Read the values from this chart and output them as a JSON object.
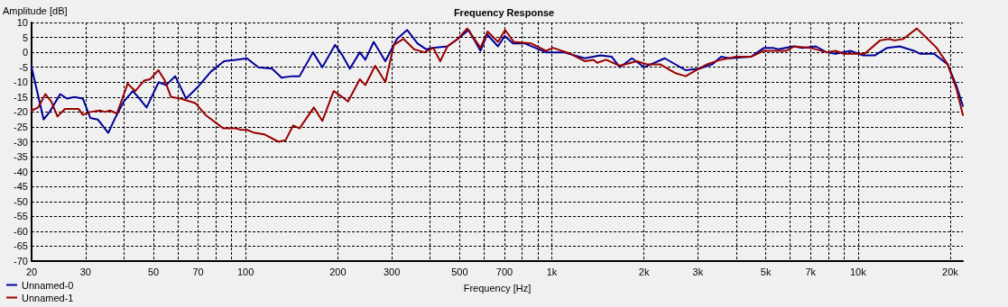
{
  "chart_data": {
    "type": "line",
    "title": "Frequency Response",
    "xlabel": "Frequency [Hz]",
    "ylabel": "Amplitude [dB]",
    "log": "x",
    "grid": true,
    "legend": "bottom left",
    "marker": "none",
    "line_style": "solid",
    "xlim": [
      20,
      22000
    ],
    "ylim": [
      -70,
      10
    ],
    "xticks": [
      20,
      30,
      {
        "value": 40,
        "label": null
      },
      50,
      {
        "value": 60,
        "label": null
      },
      70,
      {
        "value": 80,
        "label": null
      },
      {
        "value": 90,
        "label": null
      },
      100,
      200,
      300,
      {
        "value": 400,
        "label": null
      },
      500,
      {
        "value": 600,
        "label": null
      },
      700,
      {
        "value": 800,
        "label": null
      },
      {
        "value": 900,
        "label": null
      },
      {
        "value": 1000,
        "label": "1k"
      },
      {
        "value": 2000,
        "label": "2k"
      },
      {
        "value": 3000,
        "label": "3k"
      },
      {
        "value": 4000,
        "label": null
      },
      {
        "value": 5000,
        "label": "5k"
      },
      {
        "value": 6000,
        "label": null
      },
      {
        "value": 7000,
        "label": "7k"
      },
      {
        "value": 8000,
        "label": null
      },
      {
        "value": 9000,
        "label": null
      },
      {
        "value": 10000,
        "label": "10k"
      },
      {
        "value": 20000,
        "label": "20k"
      }
    ],
    "yticks": [
      -70,
      -65,
      -60,
      -55,
      -50,
      -45,
      -40,
      -35,
      -30,
      -25,
      -20,
      -15,
      -10,
      -5,
      0,
      5,
      10
    ],
    "series": [
      {
        "name": "Unnamed-0",
        "color": "#000099",
        "x": [
          20,
          21.9,
          22.9,
          24.8,
          26.1,
          27.6,
          29.4,
          31.1,
          32.9,
          35.6,
          37.3,
          40,
          42.8,
          44.6,
          47.5,
          52,
          55,
          58.9,
          63.9,
          70,
          77,
          85,
          93,
          101,
          110,
          122,
          131,
          142,
          150,
          166,
          178,
          196,
          207,
          219,
          236,
          246,
          262,
          286,
          312,
          337,
          364,
          389,
          407,
          456,
          493,
          535,
          585,
          615,
          667,
          702,
          747,
          814,
          957,
          1094,
          1281,
          1440,
          1570,
          1667,
          1826,
          2005,
          2338,
          2736,
          3030,
          3343,
          3573,
          3799,
          4473,
          4931,
          5273,
          5483,
          6160,
          6591,
          7285,
          7892,
          8440,
          9443,
          10400,
          11370,
          12440,
          13680,
          15240,
          15990,
          17710,
          19620,
          21000,
          22000
        ],
        "values": [
          -5,
          -22.5,
          -20,
          -14,
          -15.5,
          -15,
          -15.5,
          -22,
          -22.5,
          -27,
          -22.5,
          -16.5,
          -13,
          -15,
          -18.5,
          -10,
          -11,
          -8,
          -15.5,
          -11.5,
          -6.5,
          -3,
          -2.5,
          -2,
          -5,
          -5.5,
          -8.5,
          -8,
          -8,
          0,
          -5,
          2.5,
          -1,
          -5.5,
          0,
          -2.5,
          3.5,
          -3,
          4.5,
          7.5,
          3,
          1,
          1.5,
          2,
          4.5,
          7.5,
          0.5,
          6,
          2,
          5.5,
          3,
          3,
          0,
          0,
          -2,
          -1,
          -1.5,
          -5,
          -2,
          -5,
          -2,
          -6,
          -5.5,
          -4,
          -1.5,
          -2,
          -1.5,
          1.5,
          1.5,
          1,
          2,
          1.5,
          2,
          0,
          -0.5,
          0.5,
          -1,
          -1,
          1.5,
          2,
          0.5,
          -0.5,
          -0.5,
          -4,
          -11.5,
          -18
        ]
      },
      {
        "name": "Unnamed-1",
        "color": "#990000",
        "x": [
          20,
          21,
          22.2,
          23.2,
          24.3,
          25.7,
          28.5,
          29.4,
          31.1,
          33.4,
          34.8,
          36,
          38,
          41.2,
          43.6,
          46.6,
          48.8,
          51.9,
          54.5,
          57.1,
          61.3,
          68.5,
          74,
          84.6,
          92.6,
          96.9,
          101,
          107,
          115,
          128,
          135,
          143,
          150,
          167,
          178,
          194,
          207,
          216,
          236,
          246,
          265,
          286,
          305,
          328,
          355,
          384,
          410,
          432,
          456,
          493,
          529,
          585,
          617,
          667,
          704,
          751,
          855,
          957,
          1009,
          1151,
          1284,
          1368,
          1406,
          1504,
          1667,
          1895,
          2044,
          2258,
          2536,
          2736,
          2904,
          3212,
          3557,
          3993,
          4473,
          4921,
          5483,
          5834,
          6196,
          6998,
          7892,
          8453,
          8987,
          10510,
          11800,
          12620,
          13150,
          14060,
          15560,
          16880,
          18060,
          19620,
          21000,
          22000
        ],
        "values": [
          -19.5,
          -18.5,
          -14,
          -16.5,
          -21.5,
          -19,
          -19,
          -21,
          -20,
          -19.5,
          -20,
          -19.5,
          -20.5,
          -10.5,
          -13,
          -9.5,
          -9,
          -6,
          -9.5,
          -15,
          -15.5,
          -17,
          -21,
          -25.5,
          -25.5,
          -26,
          -26,
          -27,
          -27.5,
          -30,
          -29.5,
          -24.5,
          -25.5,
          -18.5,
          -23,
          -13,
          -15,
          -16.5,
          -9,
          -11,
          -4.5,
          -10,
          2.5,
          4.5,
          1,
          0,
          1.5,
          -3,
          2,
          4.5,
          8,
          1.5,
          7,
          3.5,
          7.5,
          3.5,
          3,
          0.5,
          1.5,
          -0.5,
          -3,
          -2.5,
          -3.5,
          -2.5,
          -4.5,
          -3,
          -4,
          -4,
          -7,
          -8,
          -6.5,
          -4,
          -2.5,
          -1.5,
          -1.5,
          0.5,
          0.5,
          0.5,
          2,
          1.5,
          0,
          0.5,
          -0.5,
          -0.5,
          4,
          4.5,
          4,
          4.5,
          8,
          4.5,
          1.5,
          -4,
          -12.5,
          -21
        ]
      }
    ]
  }
}
